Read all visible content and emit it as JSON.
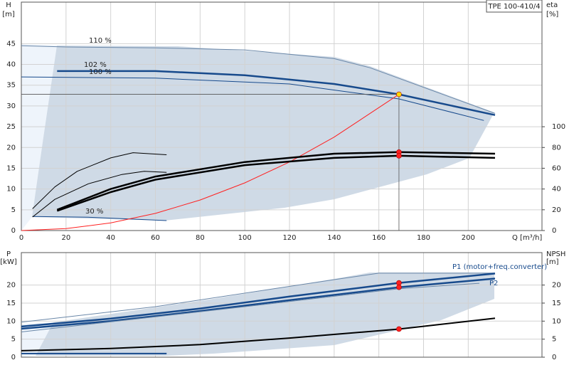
{
  "chart_data": [
    {
      "type": "line",
      "legend": "TPE 100-410/4",
      "ylabel": [
        "H",
        "[m]"
      ],
      "y2label": [
        "eta",
        "[%]"
      ],
      "xlabel": "Q [m³/h]",
      "xlim": [
        0,
        233
      ],
      "xticks": [
        0,
        20,
        40,
        60,
        80,
        100,
        120,
        140,
        160,
        180,
        200
      ],
      "ylim": [
        0,
        55
      ],
      "yticks": [
        0,
        5,
        10,
        15,
        20,
        25,
        30,
        35,
        40,
        45
      ],
      "y2lim": [
        0,
        220
      ],
      "y2ticks": [
        0,
        20,
        40,
        60,
        80,
        100
      ],
      "grid": true,
      "series": [
        {
          "name": "110 %",
          "color": "#6a87a8",
          "width": 1,
          "x": [
            0,
            20,
            60,
            100,
            140,
            156,
            212
          ],
          "values": [
            44.5,
            44.2,
            44,
            43.5,
            41.4,
            39.2,
            28.2
          ]
        },
        {
          "name": "102 %",
          "color": "#174a8c",
          "width": 2.5,
          "x": [
            16,
            60,
            100,
            140,
            169,
            212
          ],
          "values": [
            38.4,
            38.4,
            37.4,
            35.3,
            32.8,
            27.8
          ]
        },
        {
          "name": "100 %",
          "color": "#174a8c",
          "width": 1,
          "x": [
            0,
            60,
            120,
            169,
            207
          ],
          "values": [
            37,
            36.7,
            35.3,
            31.7,
            26.5
          ]
        },
        {
          "name": "30 %",
          "color": "#174a8c",
          "width": 1,
          "x": [
            5,
            30,
            65
          ],
          "values": [
            3.4,
            3.2,
            2.4
          ]
        },
        {
          "color": "#ff2020",
          "width": 1,
          "x": [
            0,
            20,
            40,
            60,
            80,
            100,
            120,
            140,
            169
          ],
          "values": [
            0,
            0.46,
            1.84,
            4.13,
            7.35,
            11.48,
            16.5,
            22.5,
            32.8
          ]
        },
        {
          "axis": "y2",
          "color": "#000000",
          "width": 2.5,
          "x": [
            16,
            40,
            60,
            100,
            140,
            169,
            212
          ],
          "values": [
            20,
            40,
            52,
            66,
            74,
            75.5,
            74
          ]
        },
        {
          "axis": "y2",
          "color": "#000000",
          "width": 2.5,
          "x": [
            16,
            40,
            60,
            100,
            140,
            169,
            212
          ],
          "values": [
            19,
            37,
            49,
            63,
            70,
            72,
            70
          ]
        },
        {
          "axis": "y2",
          "color": "#000000",
          "width": 1,
          "x": [
            5,
            15,
            25,
            40,
            50,
            65
          ],
          "values": [
            21,
            42,
            57,
            70,
            75,
            73
          ]
        },
        {
          "axis": "y2",
          "color": "#000000",
          "width": 1,
          "x": [
            5,
            15,
            30,
            45,
            55,
            65
          ],
          "values": [
            13,
            30,
            45,
            54,
            57,
            56
          ]
        },
        {
          "marker": "dot",
          "crosshair": true,
          "color": "#ffd800",
          "x": [
            169
          ],
          "values": [
            32.8
          ]
        },
        {
          "marker": "dot",
          "axis": "y2",
          "color": "#ff2020",
          "x": [
            169,
            169
          ],
          "values": [
            75.5,
            72
          ]
        }
      ]
    },
    {
      "type": "line",
      "ylabel": [
        "P",
        "[kW]"
      ],
      "y2label": [
        "NPSH",
        "[m]"
      ],
      "xlim": [
        0,
        233
      ],
      "xticks": [
        0,
        20,
        40,
        60,
        80,
        100,
        120,
        140,
        160,
        180,
        200
      ],
      "ylim": [
        0,
        29
      ],
      "yticks": [
        0,
        5,
        10,
        15,
        20
      ],
      "y2lim": [
        0,
        29
      ],
      "y2ticks": [
        0,
        5,
        10,
        15,
        20
      ],
      "grid": true,
      "series": [
        {
          "color": "#6a87a8",
          "width": 1,
          "x": [
            0,
            60,
            140,
            160,
            212
          ],
          "values": [
            9.7,
            14,
            21.5,
            23.3,
            23.3
          ]
        },
        {
          "name": "P1 (motor+freq.converter)",
          "color": "#174a8c",
          "width": 2.5,
          "x": [
            0,
            40,
            80,
            120,
            169,
            212
          ],
          "values": [
            8.5,
            10.7,
            13.5,
            16.8,
            20.6,
            23.2
          ]
        },
        {
          "name": "P2",
          "color": "#174a8c",
          "width": 2.5,
          "x": [
            0,
            40,
            80,
            120,
            169,
            212
          ],
          "values": [
            7.9,
            10,
            12.8,
            15.8,
            19.4,
            21.8
          ]
        },
        {
          "color": "#6a87a8",
          "width": 1,
          "x": [
            0,
            100,
            169,
            205
          ],
          "values": [
            7,
            14,
            19,
            20.5
          ]
        },
        {
          "color": "#174a8c",
          "width": 2,
          "x": [
            0,
            65
          ],
          "values": [
            1,
            1
          ]
        },
        {
          "axis": "y2",
          "color": "#000000",
          "width": 2,
          "x": [
            0,
            40,
            80,
            120,
            169,
            212
          ],
          "values": [
            1.8,
            2.4,
            3.5,
            5.3,
            7.8,
            10.8
          ]
        },
        {
          "marker": "dot",
          "color": "#ff2020",
          "x": [
            169,
            169
          ],
          "values": [
            20.6,
            19.4
          ]
        },
        {
          "marker": "dot",
          "axis": "y2",
          "color": "#ff2020",
          "x": [
            169
          ],
          "values": [
            7.8
          ]
        }
      ]
    }
  ]
}
